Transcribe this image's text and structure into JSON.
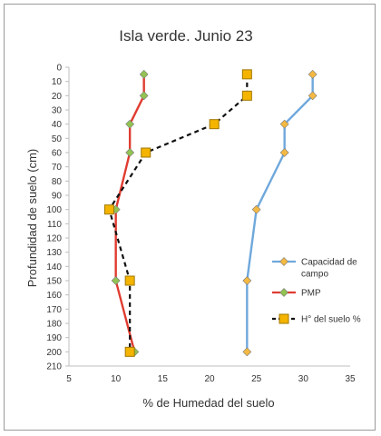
{
  "chart_data": {
    "type": "line",
    "title": "Isla verde. Junio 23",
    "xlabel": "% de Humedad del suelo",
    "ylabel": "Profundidad de suelo (cm)",
    "xlim": [
      5,
      35
    ],
    "ylim": [
      0,
      210
    ],
    "y_inverted": true,
    "x_ticks": [
      "5",
      "10",
      "15",
      "20",
      "25",
      "30",
      "35"
    ],
    "y_ticks": [
      "0",
      "10",
      "20",
      "30",
      "40",
      "50",
      "60",
      "70",
      "80",
      "90",
      "100",
      "110",
      "120",
      "130",
      "140",
      "150",
      "160",
      "170",
      "180",
      "190",
      "200",
      "210"
    ],
    "grid": false,
    "legend_position": "right",
    "series": [
      {
        "name": "Capacidad de campo",
        "color": "#6fa8dc",
        "marker": "diamond",
        "marker_color": "#f4b942",
        "dashed": false,
        "points": [
          [
            31,
            5
          ],
          [
            31,
            20
          ],
          [
            28,
            40
          ],
          [
            28,
            60
          ],
          [
            25,
            100
          ],
          [
            24,
            150
          ],
          [
            24,
            200
          ]
        ]
      },
      {
        "name": "PMP",
        "color": "#e03c31",
        "marker": "diamond",
        "marker_color": "#92c353",
        "dashed": false,
        "points": [
          [
            13,
            5
          ],
          [
            13,
            20
          ],
          [
            11.5,
            40
          ],
          [
            11.5,
            60
          ],
          [
            10,
            100
          ],
          [
            10,
            150
          ],
          [
            12,
            200
          ]
        ]
      },
      {
        "name": "H° del suelo %",
        "color": "#111111",
        "marker": "square",
        "marker_color": "#f4b400",
        "dashed": true,
        "points": [
          [
            24,
            5
          ],
          [
            24,
            20
          ],
          [
            20.5,
            40
          ],
          [
            13.2,
            60
          ],
          [
            9.3,
            100
          ],
          [
            11.5,
            150
          ],
          [
            11.5,
            200
          ]
        ]
      }
    ]
  }
}
